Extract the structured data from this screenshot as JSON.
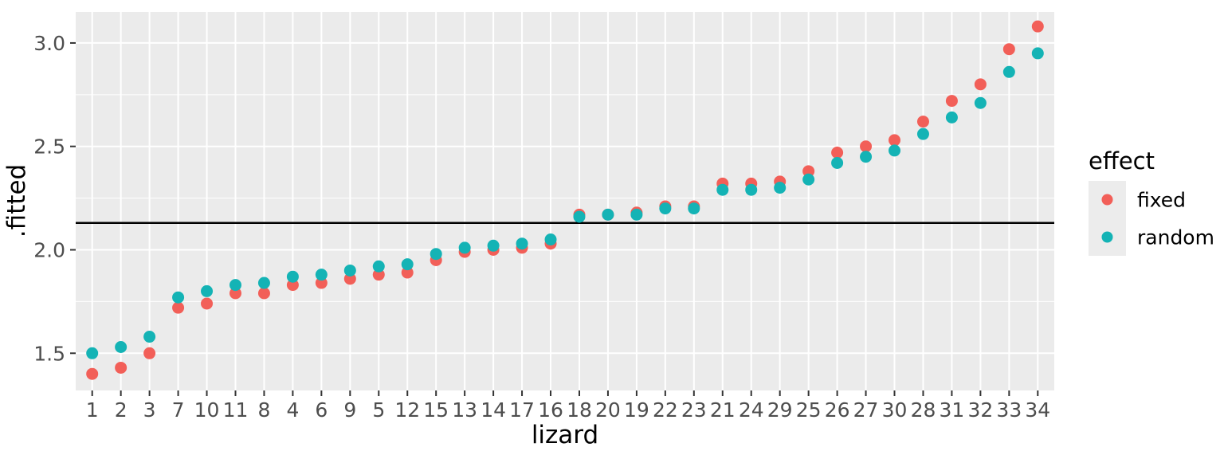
{
  "chart_data": {
    "type": "scatter",
    "title": "",
    "xlabel": "lizard",
    "ylabel": ".fitted",
    "categories": [
      "1",
      "2",
      "3",
      "7",
      "10",
      "11",
      "8",
      "4",
      "6",
      "9",
      "5",
      "12",
      "15",
      "13",
      "14",
      "17",
      "16",
      "18",
      "20",
      "19",
      "22",
      "23",
      "21",
      "24",
      "29",
      "25",
      "26",
      "27",
      "30",
      "28",
      "31",
      "32",
      "33",
      "34"
    ],
    "series": [
      {
        "name": "fixed",
        "color": "#F25F58",
        "values": [
          1.4,
          1.43,
          1.5,
          1.72,
          1.74,
          1.79,
          1.79,
          1.83,
          1.84,
          1.86,
          1.88,
          1.89,
          1.95,
          1.99,
          2.0,
          2.01,
          2.03,
          2.17,
          2.17,
          2.18,
          2.21,
          2.21,
          2.32,
          2.32,
          2.33,
          2.38,
          2.47,
          2.5,
          2.53,
          2.62,
          2.72,
          2.8,
          2.97,
          3.08
        ]
      },
      {
        "name": "random",
        "color": "#14B3B5",
        "values": [
          1.5,
          1.53,
          1.58,
          1.77,
          1.8,
          1.83,
          1.84,
          1.87,
          1.88,
          1.9,
          1.92,
          1.93,
          1.98,
          2.01,
          2.02,
          2.03,
          2.05,
          2.16,
          2.17,
          2.17,
          2.2,
          2.2,
          2.29,
          2.29,
          2.3,
          2.34,
          2.42,
          2.45,
          2.48,
          2.56,
          2.64,
          2.71,
          2.86,
          2.95
        ]
      }
    ],
    "hline": 2.13,
    "y_ticks": [
      1.5,
      2.0,
      2.5,
      3.0
    ],
    "y_minor_ticks": [
      1.75,
      2.25,
      2.75
    ],
    "ylim": [
      1.32,
      3.15
    ],
    "grid": "major+minor",
    "legend": {
      "title": "effect",
      "position": "right",
      "items": [
        {
          "label": "fixed",
          "color": "#F25F58"
        },
        {
          "label": "random",
          "color": "#14B3B5"
        }
      ]
    },
    "colors": {
      "panel_bg": "#EBEBEB",
      "grid": "#FFFFFF",
      "tick": "#333333",
      "tick_label": "#4D4D4D",
      "hline": "#000000",
      "legend_key_bg": "#ECECEC"
    }
  }
}
